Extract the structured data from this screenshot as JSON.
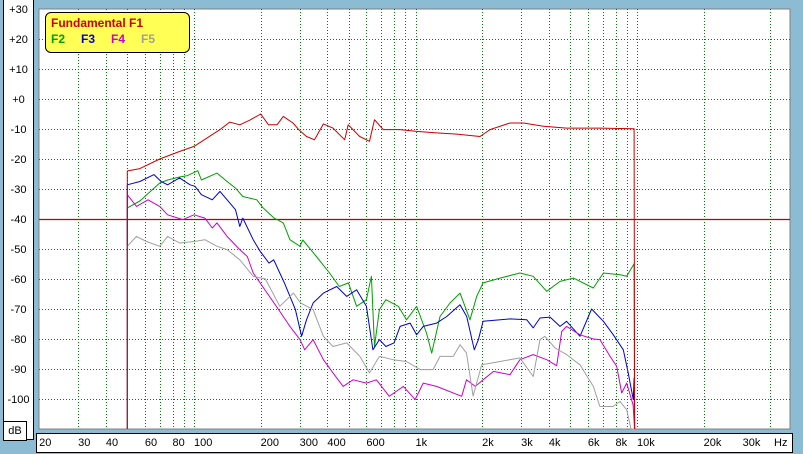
{
  "colors": {
    "background": "#8cbcd4",
    "grid": "#008000",
    "reference_line": "#c00000",
    "legend_bg": "#ffff55"
  },
  "chart_data": {
    "type": "line",
    "xscale": "log",
    "xlim": [
      20,
      50000
    ],
    "ylim": [
      -110,
      30
    ],
    "grid": true,
    "legend_placement": "top-left",
    "ylabel": "dB",
    "xlabel": "Hz",
    "y_ticks": [
      "+30",
      "+20",
      "+10",
      "+0",
      "-10",
      "-20",
      "-30",
      "-40",
      "-50",
      "-60",
      "-70",
      "-80",
      "-90",
      "-100"
    ],
    "y_tick_values": [
      30,
      20,
      10,
      0,
      -10,
      -20,
      -30,
      -40,
      -50,
      -60,
      -70,
      -80,
      -90,
      -100
    ],
    "x_ticks": [
      "20",
      "30",
      "40",
      "60",
      "80",
      "100",
      "200",
      "300",
      "400",
      "600",
      "1k",
      "2k",
      "3k",
      "4k",
      "6k",
      "8k",
      "10k",
      "20k",
      "30k"
    ],
    "x_tick_values": [
      20,
      30,
      40,
      60,
      80,
      100,
      200,
      300,
      400,
      600,
      1000,
      2000,
      3000,
      4000,
      6000,
      8000,
      10000,
      20000,
      30000
    ],
    "x_gridlines": [
      30,
      40,
      50,
      60,
      70,
      80,
      90,
      100,
      200,
      300,
      400,
      500,
      600,
      700,
      800,
      900,
      1000,
      2000,
      3000,
      4000,
      5000,
      6000,
      7000,
      8000,
      9000,
      10000,
      20000,
      40000
    ],
    "reference_line_db": -40,
    "legend_title": "Fundamental F1",
    "series": [
      {
        "name": "Fundamental F1",
        "color": "#cc0000",
        "points": [
          [
            50,
            -110
          ],
          [
            50,
            -24
          ],
          [
            57,
            -23.2
          ],
          [
            70,
            -20
          ],
          [
            86,
            -17.5
          ],
          [
            100,
            -15.8
          ],
          [
            131,
            -10.2
          ],
          [
            145,
            -7.7
          ],
          [
            161,
            -8.6
          ],
          [
            178,
            -7.1
          ],
          [
            200,
            -5
          ],
          [
            217,
            -8.6
          ],
          [
            237,
            -8.6
          ],
          [
            253,
            -5.8
          ],
          [
            280,
            -8
          ],
          [
            297,
            -10.2
          ],
          [
            322,
            -12.5
          ],
          [
            350,
            -13.6
          ],
          [
            384,
            -8.3
          ],
          [
            424,
            -9.7
          ],
          [
            479,
            -13.6
          ],
          [
            497,
            -8.6
          ],
          [
            560,
            -12.5
          ],
          [
            620,
            -14.1
          ],
          [
            653,
            -6.9
          ],
          [
            715,
            -10.2
          ],
          [
            852,
            -10.2
          ],
          [
            1011,
            -10.8
          ],
          [
            1245,
            -11.3
          ],
          [
            1536,
            -11.7
          ],
          [
            1955,
            -12.5
          ],
          [
            2170,
            -10.2
          ],
          [
            2670,
            -8
          ],
          [
            3070,
            -8
          ],
          [
            3780,
            -9.1
          ],
          [
            4810,
            -9.7
          ],
          [
            6800,
            -9.7
          ],
          [
            9700,
            -9.9
          ],
          [
            9750,
            -110
          ]
        ]
      },
      {
        "name": "F2",
        "color": "#00a000",
        "points": [
          [
            50,
            -110
          ],
          [
            50,
            -36.3
          ],
          [
            57,
            -34
          ],
          [
            70,
            -28
          ],
          [
            76,
            -27
          ],
          [
            86,
            -26
          ],
          [
            93,
            -25.6
          ],
          [
            104,
            -23.9
          ],
          [
            108,
            -27
          ],
          [
            127,
            -24.7
          ],
          [
            141,
            -27.5
          ],
          [
            154,
            -29.7
          ],
          [
            166,
            -32.5
          ],
          [
            192,
            -33.6
          ],
          [
            205,
            -36.3
          ],
          [
            229,
            -39.6
          ],
          [
            253,
            -41.3
          ],
          [
            271,
            -46.9
          ],
          [
            301,
            -49.1
          ],
          [
            310,
            -47
          ],
          [
            357,
            -52.5
          ],
          [
            409,
            -58
          ],
          [
            453,
            -62.5
          ],
          [
            498,
            -61.3
          ],
          [
            542,
            -69.1
          ],
          [
            600,
            -66.9
          ],
          [
            632,
            -59.1
          ],
          [
            653,
            -82.5
          ],
          [
            687,
            -70.2
          ],
          [
            735,
            -66.9
          ],
          [
            836,
            -69.1
          ],
          [
            911,
            -73.6
          ],
          [
            1011,
            -69.1
          ],
          [
            1121,
            -78
          ],
          [
            1183,
            -84.7
          ],
          [
            1290,
            -72.5
          ],
          [
            1431,
            -68
          ],
          [
            1589,
            -64.7
          ],
          [
            1762,
            -73.6
          ],
          [
            1889,
            -65.8
          ],
          [
            2020,
            -61.3
          ],
          [
            2410,
            -59.7
          ],
          [
            2960,
            -58
          ],
          [
            3400,
            -59.1
          ],
          [
            3910,
            -64.1
          ],
          [
            4490,
            -60.8
          ],
          [
            5160,
            -59.7
          ],
          [
            6350,
            -63
          ],
          [
            7050,
            -58
          ],
          [
            8380,
            -58.6
          ],
          [
            8980,
            -59.1
          ],
          [
            9700,
            -54.9
          ],
          [
            9750,
            -110
          ]
        ]
      },
      {
        "name": "F3",
        "color": "#0000cc",
        "points": [
          [
            50,
            -110
          ],
          [
            50,
            -28.6
          ],
          [
            57,
            -27.5
          ],
          [
            66,
            -25.2
          ],
          [
            71,
            -27.5
          ],
          [
            76,
            -28.6
          ],
          [
            86,
            -26.3
          ],
          [
            96,
            -28.6
          ],
          [
            101,
            -29.1
          ],
          [
            108,
            -31.9
          ],
          [
            121,
            -33.6
          ],
          [
            131,
            -30.8
          ],
          [
            141,
            -33.6
          ],
          [
            154,
            -36.9
          ],
          [
            161,
            -42.5
          ],
          [
            166,
            -39.7
          ],
          [
            185,
            -46.9
          ],
          [
            199,
            -50.8
          ],
          [
            218,
            -54.7
          ],
          [
            229,
            -53.6
          ],
          [
            244,
            -58
          ],
          [
            256,
            -61.3
          ],
          [
            287,
            -70.2
          ],
          [
            306,
            -79.1
          ],
          [
            322,
            -73.6
          ],
          [
            345,
            -68
          ],
          [
            384,
            -64.7
          ],
          [
            441,
            -62.5
          ],
          [
            489,
            -65.8
          ],
          [
            542,
            -63.6
          ],
          [
            600,
            -69.1
          ],
          [
            642,
            -83.6
          ],
          [
            687,
            -80.2
          ],
          [
            735,
            -82.5
          ],
          [
            800,
            -81.3
          ],
          [
            852,
            -75.8
          ],
          [
            945,
            -74.7
          ],
          [
            1011,
            -78.6
          ],
          [
            1083,
            -75.8
          ],
          [
            1245,
            -74.7
          ],
          [
            1383,
            -72.5
          ],
          [
            1589,
            -68.6
          ],
          [
            1703,
            -72.5
          ],
          [
            1843,
            -83.6
          ],
          [
            1923,
            -80.2
          ],
          [
            2020,
            -74.1
          ],
          [
            2670,
            -73.3
          ],
          [
            3180,
            -73.6
          ],
          [
            3400,
            -76.3
          ],
          [
            3650,
            -73
          ],
          [
            4050,
            -72.7
          ],
          [
            4490,
            -75.8
          ],
          [
            4810,
            -74.1
          ],
          [
            5530,
            -79.1
          ],
          [
            6240,
            -70
          ],
          [
            7050,
            -74.1
          ],
          [
            7820,
            -78.6
          ],
          [
            8670,
            -83.6
          ],
          [
            9130,
            -91.3
          ],
          [
            9620,
            -100.2
          ],
          [
            9700,
            -93
          ],
          [
            9750,
            -110
          ]
        ]
      },
      {
        "name": "F4",
        "color": "#cc00cc",
        "points": [
          [
            50,
            -110
          ],
          [
            50,
            -31.9
          ],
          [
            55,
            -35.8
          ],
          [
            62,
            -33.6
          ],
          [
            70,
            -35.8
          ],
          [
            76,
            -38.6
          ],
          [
            89,
            -40.2
          ],
          [
            100,
            -38.6
          ],
          [
            112,
            -39.7
          ],
          [
            121,
            -43
          ],
          [
            127,
            -41.3
          ],
          [
            141,
            -45.8
          ],
          [
            161,
            -50.2
          ],
          [
            174,
            -52.5
          ],
          [
            185,
            -58
          ],
          [
            244,
            -70.8
          ],
          [
            271,
            -75.8
          ],
          [
            301,
            -80.2
          ],
          [
            316,
            -83.6
          ],
          [
            345,
            -80.2
          ],
          [
            384,
            -86.9
          ],
          [
            424,
            -91.3
          ],
          [
            471,
            -95.8
          ],
          [
            523,
            -93.6
          ],
          [
            600,
            -94.7
          ],
          [
            666,
            -93.6
          ],
          [
            761,
            -99.1
          ],
          [
            882,
            -95.8
          ],
          [
            996,
            -100.2
          ],
          [
            1083,
            -94.7
          ],
          [
            1245,
            -95.8
          ],
          [
            1617,
            -99.1
          ],
          [
            1700,
            -93.6
          ],
          [
            1862,
            -95.8
          ],
          [
            2020,
            -93.6
          ],
          [
            2250,
            -90.8
          ],
          [
            2670,
            -91.9
          ],
          [
            2960,
            -86.9
          ],
          [
            3400,
            -85.2
          ],
          [
            3910,
            -86.9
          ],
          [
            4340,
            -88.9
          ],
          [
            4570,
            -77.5
          ],
          [
            4810,
            -75.8
          ],
          [
            5530,
            -78.6
          ],
          [
            6350,
            -80
          ],
          [
            6800,
            -80.2
          ],
          [
            7560,
            -85.8
          ],
          [
            8100,
            -89.1
          ],
          [
            8530,
            -98
          ],
          [
            8980,
            -94.7
          ],
          [
            9600,
            -102
          ],
          [
            9750,
            -110
          ]
        ]
      },
      {
        "name": "F5",
        "color": "#a0a0a0",
        "points": [
          [
            50,
            -110
          ],
          [
            50,
            -49.1
          ],
          [
            55,
            -45.8
          ],
          [
            61,
            -47.5
          ],
          [
            70,
            -49.1
          ],
          [
            76,
            -45.8
          ],
          [
            86,
            -48
          ],
          [
            100,
            -47.5
          ],
          [
            112,
            -46.9
          ],
          [
            127,
            -49.1
          ],
          [
            141,
            -50.2
          ],
          [
            161,
            -53.6
          ],
          [
            185,
            -59.1
          ],
          [
            210,
            -60
          ],
          [
            244,
            -69.1
          ],
          [
            281,
            -64.7
          ],
          [
            303,
            -68
          ],
          [
            345,
            -70.2
          ],
          [
            384,
            -79.1
          ],
          [
            424,
            -82.5
          ],
          [
            489,
            -81.3
          ],
          [
            561,
            -85.8
          ],
          [
            620,
            -91.3
          ],
          [
            687,
            -85.8
          ],
          [
            793,
            -86.9
          ],
          [
            911,
            -87.5
          ],
          [
            1050,
            -90.2
          ],
          [
            1201,
            -90.2
          ],
          [
            1290,
            -85.8
          ],
          [
            1482,
            -85.8
          ],
          [
            1589,
            -81.9
          ],
          [
            1700,
            -84.7
          ],
          [
            1820,
            -99
          ],
          [
            1990,
            -88.6
          ],
          [
            2410,
            -87.5
          ],
          [
            2960,
            -86.3
          ],
          [
            3400,
            -92.5
          ],
          [
            3650,
            -80.2
          ],
          [
            3840,
            -79.1
          ],
          [
            4270,
            -83
          ],
          [
            4810,
            -85.2
          ],
          [
            5530,
            -88.6
          ],
          [
            6350,
            -95.8
          ],
          [
            6800,
            -102.5
          ],
          [
            7800,
            -102.5
          ],
          [
            8380,
            -100.8
          ],
          [
            8980,
            -103.6
          ],
          [
            9400,
            -110
          ],
          [
            9750,
            -110
          ]
        ]
      }
    ]
  }
}
